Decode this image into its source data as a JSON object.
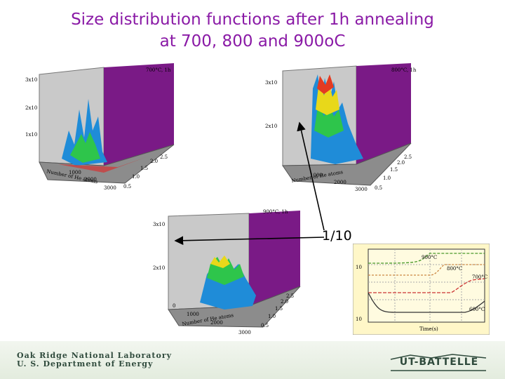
{
  "title": {
    "line1": "Size distribution functions after 1h annealing",
    "line2": "at 700, 800 and 900oC"
  },
  "plots": [
    {
      "label": "700°C, 1h",
      "ztick_top": "3x10",
      "ztick_mid": "2x10",
      "ztick_low": "1x10",
      "xticks": [
        "1000",
        "2000",
        "3000"
      ],
      "yticks": [
        "0.5",
        "1.0",
        "1.5",
        "2.0",
        "2.5"
      ],
      "xlabel": "Number of He atoms"
    },
    {
      "label": "800°C, 1h",
      "ztick_top": "3x10",
      "ztick_mid": "2x10",
      "xticks": [
        "1000",
        "2000",
        "3000"
      ],
      "yticks": [
        "0.5",
        "1.0",
        "1.5",
        "2.0",
        "2.5"
      ],
      "xlabel": "Number of He atoms"
    },
    {
      "label": "900°C, 1h",
      "ztick_top": "3x10",
      "ztick_mid": "2x10",
      "xticks": [
        "0",
        "1000",
        "2000",
        "3000"
      ],
      "yticks": [
        "0.5",
        "1.0",
        "1.5",
        "2.0",
        "2.5"
      ],
      "xlabel": "Number of He atoms"
    }
  ],
  "annotation": {
    "ratio": "1/10"
  },
  "inset": {
    "labels": [
      "900°C",
      "800°C",
      "700°C",
      "600°C"
    ],
    "xlabel": "Time(s)",
    "ylabel_top": "10",
    "ylabel_bottom": "10"
  },
  "footer": {
    "org_line1": "Oak Ridge National Laboratory",
    "org_line2": "U. S. Department of Energy",
    "partner": "UT-BATTELLE"
  },
  "colors": {
    "title": "#8a1aa6",
    "wall": "#7a1a86",
    "floor": "#c8c8c8"
  }
}
